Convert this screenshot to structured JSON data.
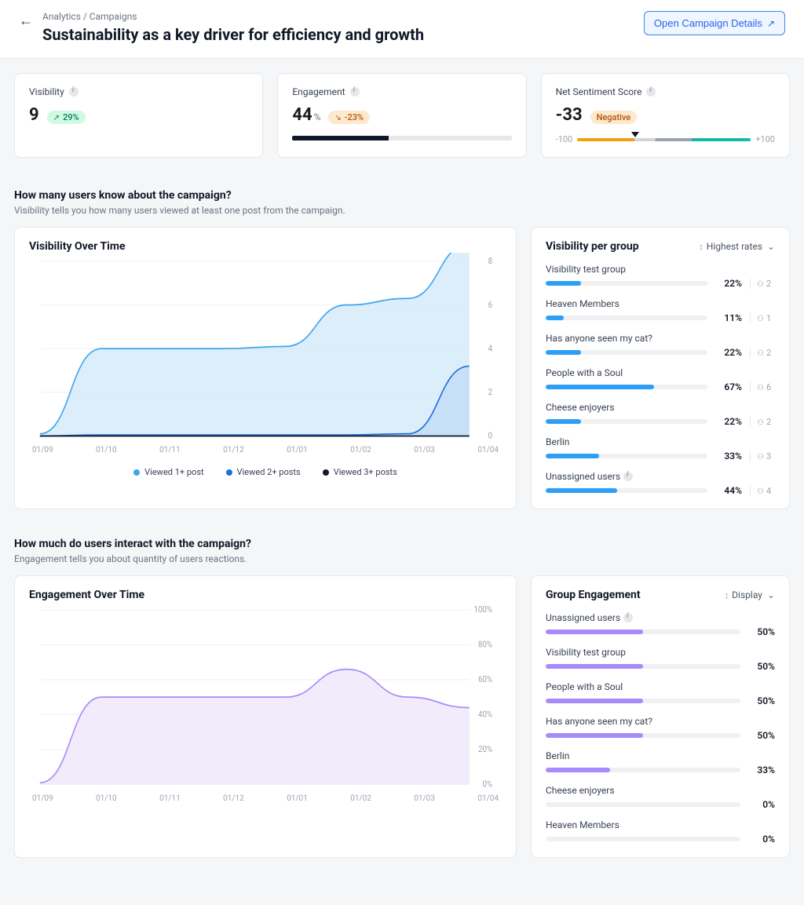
{
  "header": {
    "breadcrumb": "Analytics / Campaigns",
    "title": "Sustainability as a key driver for efficiency and growth",
    "open_details_label": "Open Campaign Details"
  },
  "metrics": {
    "visibility": {
      "title": "Visibility",
      "value": "9",
      "delta": "29%",
      "delta_direction": "up",
      "badge_bg": "#d1fae5",
      "badge_fg": "#047857"
    },
    "engagement": {
      "title": "Engagement",
      "value": "44",
      "unit": "%",
      "delta": "-23%",
      "delta_direction": "down",
      "badge_bg": "#fde9cc",
      "badge_fg": "#b45309",
      "bar_fill_pct": 44,
      "bar_color": "#0f172a",
      "bar_track": "#e5e7eb"
    },
    "sentiment": {
      "title": "Net Sentiment Score",
      "value": "-33",
      "badge_text": "Negative",
      "badge_bg": "#fde9cc",
      "badge_fg": "#b45309",
      "min_label": "-100",
      "max_label": "+100",
      "marker_pct": 33.5,
      "gradient_stops": [
        {
          "pct": 0,
          "color": "#f59e0b"
        },
        {
          "pct": 33,
          "color": "#f59e0b"
        },
        {
          "pct": 33,
          "color": "#d1d5db"
        },
        {
          "pct": 45,
          "color": "#d1d5db"
        },
        {
          "pct": 45,
          "color": "#9ca3af"
        },
        {
          "pct": 66,
          "color": "#9ca3af"
        },
        {
          "pct": 66,
          "color": "#14b8a6"
        },
        {
          "pct": 100,
          "color": "#14b8a6"
        }
      ]
    }
  },
  "section_visibility": {
    "heading": "How many users know about the campaign?",
    "sub": "Visibility tells you how many users viewed at least one post from the campaign.",
    "chart": {
      "title": "Visibility Over Time",
      "type": "area",
      "xlabels": [
        "01/09",
        "01/10",
        "01/11",
        "01/12",
        "01/01",
        "01/02",
        "01/03",
        "01/04"
      ],
      "ylim": [
        0,
        8
      ],
      "yticks": [
        0,
        2,
        4,
        6,
        8
      ],
      "grid_color": "#f0f1f3",
      "series": [
        {
          "name": "Viewed 1+ post",
          "color": "#3ca6ef",
          "fill": "#cfe7f9",
          "fill_opacity": 0.7,
          "values": [
            0.1,
            4.0,
            4.0,
            4.0,
            4.1,
            6.0,
            6.3,
            8.8
          ]
        },
        {
          "name": "Viewed 2+ posts",
          "color": "#1f6fd8",
          "fill": "#b8d8f5",
          "fill_opacity": 0.6,
          "values": [
            0.0,
            0.05,
            0.05,
            0.05,
            0.05,
            0.05,
            0.1,
            3.2
          ]
        },
        {
          "name": "Viewed 3+ posts",
          "color": "#0f172a",
          "fill": "none",
          "fill_opacity": 0,
          "values": [
            0.0,
            0.0,
            0.0,
            0.0,
            0.0,
            0.0,
            0.0,
            0.0
          ]
        }
      ],
      "legend": [
        "Viewed 1+ post",
        "Viewed 2+ posts",
        "Viewed 3+ posts"
      ]
    },
    "groups": {
      "title": "Visibility per group",
      "sort_label": "Highest rates",
      "bar_color": "#2e9ff7",
      "rows": [
        {
          "name": "Visibility test group",
          "pct": 22,
          "count": 2
        },
        {
          "name": "Heaven Members",
          "pct": 11,
          "count": 1
        },
        {
          "name": "Has anyone seen my cat?",
          "pct": 22,
          "count": 2
        },
        {
          "name": "People with a Soul",
          "pct": 67,
          "count": 6
        },
        {
          "name": "Cheese enjoyers",
          "pct": 22,
          "count": 2
        },
        {
          "name": "Berlin",
          "pct": 33,
          "count": 3
        },
        {
          "name": "Unassigned users",
          "pct": 44,
          "count": 4,
          "info": true
        }
      ]
    }
  },
  "section_engagement": {
    "heading": "How much do users interact with the campaign?",
    "sub": "Engagement tells you about quantity of users reactions.",
    "chart": {
      "title": "Engagement Over Time",
      "type": "area",
      "xlabels": [
        "01/09",
        "01/10",
        "01/11",
        "01/12",
        "01/01",
        "01/02",
        "01/03",
        "01/04"
      ],
      "ylim": [
        0,
        100
      ],
      "yticks": [
        0,
        20,
        40,
        60,
        80,
        100
      ],
      "grid_color": "#f0f1f3",
      "series": [
        {
          "name": "Engagement",
          "color": "#a78bfa",
          "fill": "#efe9fb",
          "fill_opacity": 0.9,
          "values": [
            1,
            50,
            50,
            50,
            50,
            66,
            50,
            44
          ]
        }
      ]
    },
    "groups": {
      "title": "Group Engagement",
      "sort_label": "Display",
      "bar_color": "#a78bfa",
      "rows": [
        {
          "name": "Unassigned users",
          "pct": 50,
          "info": true
        },
        {
          "name": "Visibility test group",
          "pct": 50
        },
        {
          "name": "People with a Soul",
          "pct": 50
        },
        {
          "name": "Has anyone seen my cat?",
          "pct": 50
        },
        {
          "name": "Berlin",
          "pct": 33
        },
        {
          "name": "Cheese enjoyers",
          "pct": 0
        },
        {
          "name": "Heaven Members",
          "pct": 0
        }
      ]
    }
  }
}
